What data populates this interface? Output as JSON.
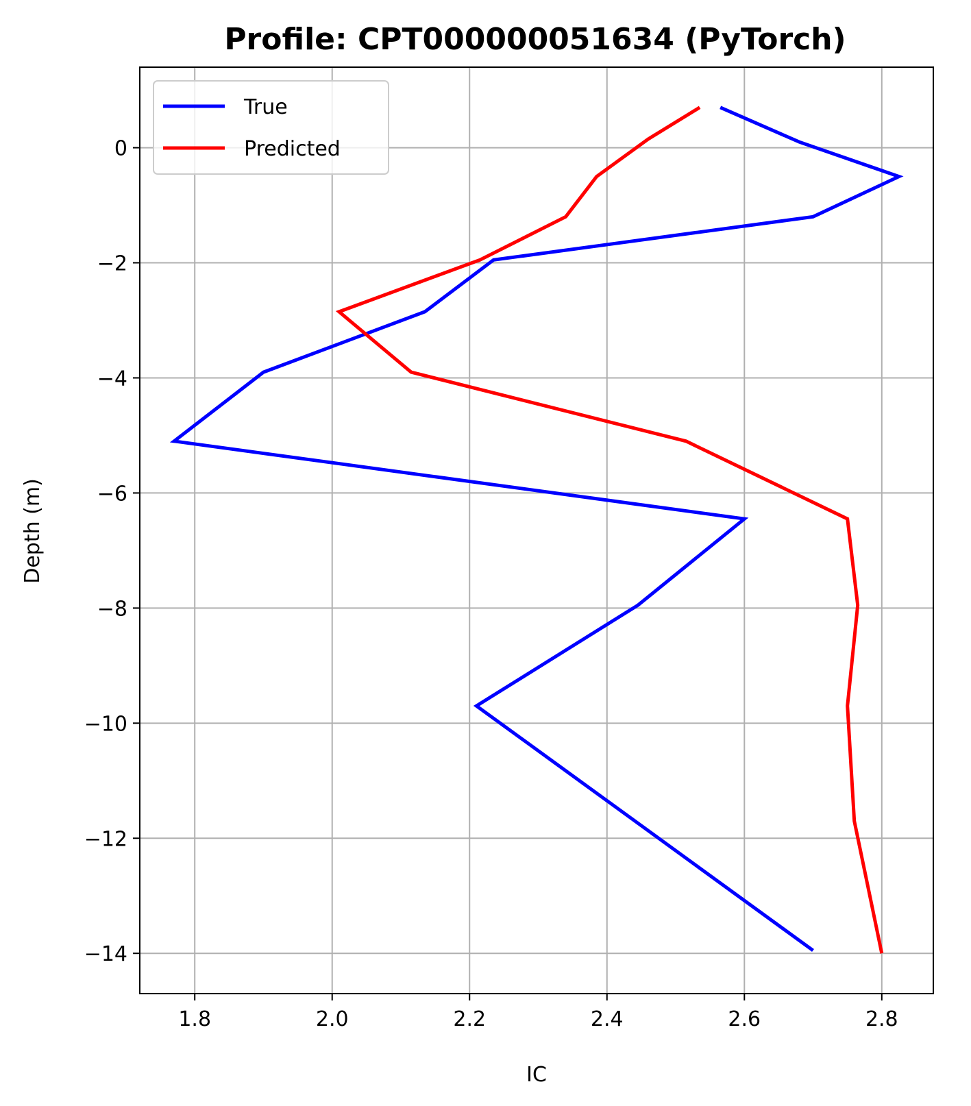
{
  "chart_data": {
    "type": "line",
    "title": "Profile: CPT000000051634 (PyTorch)",
    "xlabel": "IC",
    "ylabel": "Depth (m)",
    "xlim": [
      1.72,
      2.875
    ],
    "ylim": [
      -14.7,
      1.4
    ],
    "xticks": [
      1.8,
      2.0,
      2.2,
      2.4,
      2.6,
      2.8
    ],
    "xtick_labels": [
      "1.8",
      "2.0",
      "2.2",
      "2.4",
      "2.6",
      "2.8"
    ],
    "yticks": [
      0,
      -2,
      -4,
      -6,
      -8,
      -10,
      -12,
      -14
    ],
    "ytick_labels": [
      "0",
      "−2",
      "−4",
      "−6",
      "−8",
      "−10",
      "−12",
      "−14"
    ],
    "grid": true,
    "legend_position": "upper-left",
    "series": [
      {
        "name": "True",
        "color": "#0000ff",
        "points": [
          {
            "x": 2.565,
            "y": 0.7
          },
          {
            "x": 2.68,
            "y": 0.1
          },
          {
            "x": 2.825,
            "y": -0.5
          },
          {
            "x": 2.7,
            "y": -1.2
          },
          {
            "x": 2.235,
            "y": -1.95
          },
          {
            "x": 2.135,
            "y": -2.85
          },
          {
            "x": 1.9,
            "y": -3.9
          },
          {
            "x": 1.77,
            "y": -5.1
          },
          {
            "x": 2.6,
            "y": -6.45
          },
          {
            "x": 2.445,
            "y": -7.95
          },
          {
            "x": 2.21,
            "y": -9.7
          },
          {
            "x": 2.7,
            "y": -13.95
          }
        ]
      },
      {
        "name": "Predicted",
        "color": "#ff0000",
        "points": [
          {
            "x": 2.535,
            "y": 0.7
          },
          {
            "x": 2.46,
            "y": 0.15
          },
          {
            "x": 2.385,
            "y": -0.5
          },
          {
            "x": 2.34,
            "y": -1.2
          },
          {
            "x": 2.215,
            "y": -1.95
          },
          {
            "x": 2.01,
            "y": -2.85
          },
          {
            "x": 2.115,
            "y": -3.9
          },
          {
            "x": 2.515,
            "y": -5.1
          },
          {
            "x": 2.75,
            "y": -6.45
          },
          {
            "x": 2.765,
            "y": -7.95
          },
          {
            "x": 2.75,
            "y": -9.7
          },
          {
            "x": 2.76,
            "y": -11.7
          },
          {
            "x": 2.8,
            "y": -14.0
          }
        ]
      }
    ]
  }
}
